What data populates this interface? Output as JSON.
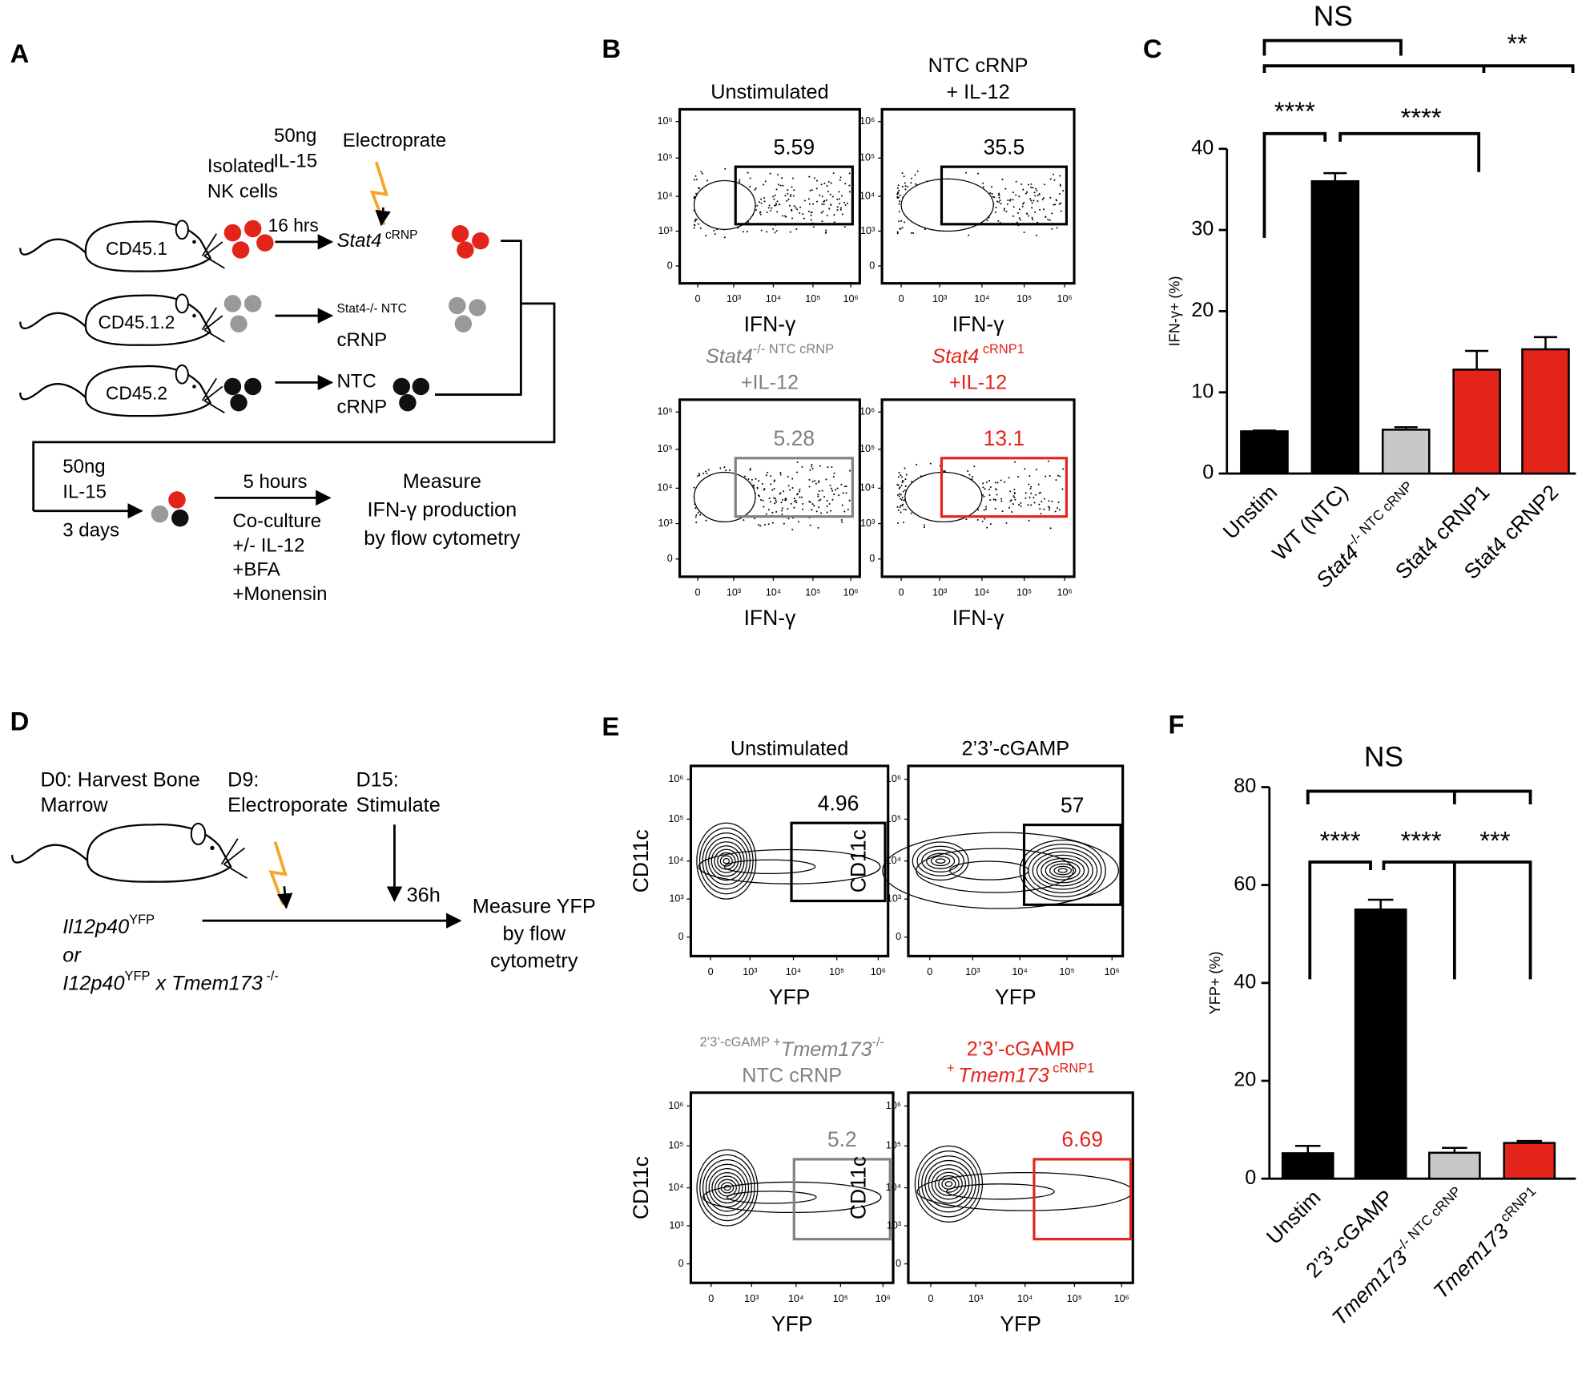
{
  "panel_labels": [
    "A",
    "B",
    "C",
    "D",
    "E",
    "F"
  ],
  "panel_a": {
    "isolated": [
      "Isolated",
      "NK cells"
    ],
    "dose1": [
      "50ng",
      "IL-15"
    ],
    "electroporate": "Electroprate",
    "time1": "16 hrs",
    "mice": [
      "CD45.1",
      "CD45.1.2",
      "CD45.2"
    ],
    "groups": [
      [
        [
          {
            "text": "Stat4",
            "italic": true
          },
          " cRNP"
        ]
      ],
      [
        [
          "Stat4",
          {
            "text": "-/-",
            "sup": true
          },
          " NTC"
        ],
        "      cRNP"
      ],
      [
        "NTC",
        "cRNP"
      ]
    ],
    "dose2": [
      "50ng",
      "IL-15"
    ],
    "time2": "3 days",
    "time3": "5 hours",
    "culture": [
      "Co-culture",
      "+/- IL-12",
      "+BFA",
      "+Monensin"
    ],
    "readout": [
      "Measure",
      "IFN-γ production",
      "by flow cytometry"
    ]
  },
  "panel_b": {
    "x_label": "IFN-γ",
    "ticks": [
      "0",
      "10³",
      "10⁴",
      "10⁵",
      "10⁶"
    ],
    "plots": [
      {
        "title": [
          "Unstimulated"
        ],
        "gate_value": 5.59,
        "color": "#000000"
      },
      {
        "title": [
          "NTC cRNP",
          "+ IL-12"
        ],
        "gate_value": 35.5,
        "color": "#000000"
      },
      {
        "title": [
          [
            {
              "text": "Stat4",
              "italic": true
            },
            {
              "text": "-/-",
              "sup": true
            },
            "  NTC cRNP"
          ],
          "+IL-12"
        ],
        "gate_value": 5.28,
        "color": "#808080"
      },
      {
        "title": [
          [
            {
              "text": "Stat4",
              "italic": true
            },
            " cRNP1"
          ],
          "+IL-12"
        ],
        "gate_value": 13.1,
        "color": "#e3241b"
      }
    ]
  },
  "panel_d": {
    "steps": [
      [
        "D0: Harvest Bone",
        "Marrow"
      ],
      [
        "D9:",
        "Electroporate"
      ],
      [
        "D15:",
        "Stimulate"
      ]
    ],
    "time": "36h",
    "readout": [
      "Measure YFP",
      "by flow",
      "cytometry"
    ],
    "genotype": [
      [
        {
          "text": "Il12p40",
          "italic": true
        },
        {
          "text": "YFP",
          "sup": true
        }
      ],
      [
        {
          "text": "or",
          "italic": true
        }
      ],
      [
        {
          "text": "I12p40",
          "italic": true
        },
        {
          "text": "YFP",
          "sup": true
        },
        {
          "text": " x ",
          "italic": true
        },
        {
          "text": "Tmem173",
          "italic": true
        },
        {
          "text": " -/-",
          "sup": true
        }
      ]
    ]
  },
  "panel_e": {
    "x_label": "YFP",
    "y_label": "CD11c",
    "ticks": [
      "0",
      "10³",
      "10⁴",
      "10⁵",
      "10⁶"
    ],
    "plots": [
      {
        "title": [
          "Unstimulated"
        ],
        "gate_value": 4.96,
        "color": "#000000"
      },
      {
        "title": [
          "2’3’-cGAMP"
        ],
        "gate_value": 57,
        "color": "#000000"
      },
      {
        "title": [
          [
            "2’3’-cGAMP +",
            {
              "text": "Tmem173",
              "italic": true
            },
            {
              "text": "-/-",
              "sup": true
            }
          ],
          "NTC cRNP"
        ],
        "gate_value": 5.2,
        "color": "#808080"
      },
      {
        "title": [
          "2’3’-cGAMP",
          [
            "+ ",
            {
              "text": "Tmem173",
              "italic": true
            },
            " cRNP1"
          ]
        ],
        "gate_value": 6.69,
        "color": "#e3241b"
      }
    ]
  },
  "chart_data": [
    {
      "type": "bar",
      "ylabel": [
        "IFN-γ",
        {
          "text": "+",
          "sup": true
        },
        " (%)"
      ],
      "categories": [
        "Unstim",
        "WT (NTC)",
        [
          {
            "text": "Stat4",
            "italic": true
          },
          {
            "text": "-/-",
            "sup": true
          },
          " NTC cRNP"
        ],
        "Stat4 cRNP1",
        "Stat4 cRNP2"
      ],
      "values": [
        5.2,
        36,
        5.4,
        12.8,
        15.3
      ],
      "errors": [
        0.1,
        1,
        0.3,
        2.3,
        1.5
      ],
      "colors": [
        "#000000",
        "#000000",
        "#c8c8c8",
        "#e3241b",
        "#e3241b"
      ],
      "ylim": [
        0,
        40
      ],
      "yticks": [
        0,
        10,
        20,
        30,
        40
      ],
      "annotations": [
        "NS",
        "**",
        "****",
        "****"
      ]
    },
    {
      "type": "bar",
      "ylabel": [
        "YFP",
        {
          "text": "+",
          "sup": true
        },
        " (%)"
      ],
      "categories": [
        "Unstim",
        "2’3’-cGAMP",
        [
          {
            "text": "Tmem173",
            "italic": true
          },
          {
            "text": "-/-",
            "sup": true
          },
          " NTC cRNP"
        ],
        [
          {
            "text": "Tmem173",
            "italic": true
          },
          " cRNP1"
        ]
      ],
      "values": [
        5.2,
        55,
        5.3,
        7.3
      ],
      "errors": [
        1.5,
        2,
        1,
        0.4
      ],
      "colors": [
        "#000000",
        "#000000",
        "#c8c8c8",
        "#e3241b"
      ],
      "ylim": [
        0,
        80
      ],
      "yticks": [
        0,
        20,
        40,
        60,
        80
      ],
      "annotations": [
        "NS",
        "****",
        "****",
        "***"
      ]
    }
  ]
}
